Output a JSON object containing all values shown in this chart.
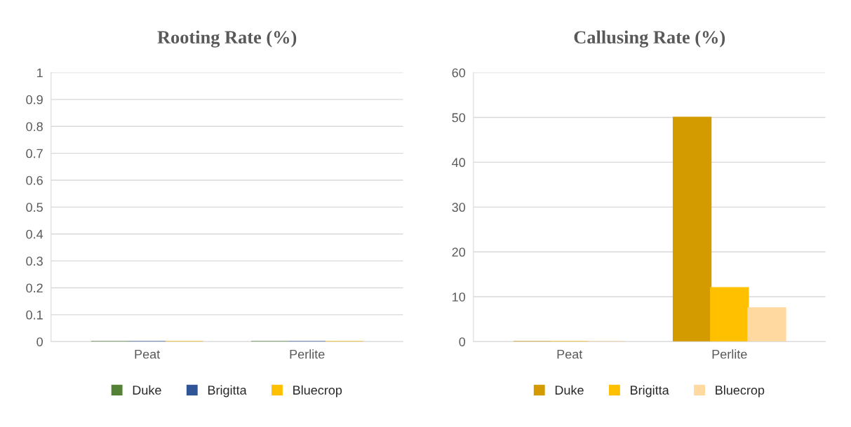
{
  "chart_data": [
    {
      "type": "bar",
      "title": "Rooting Rate (%)",
      "categories": [
        "Peat",
        "Perlite"
      ],
      "series": [
        {
          "name": "Duke",
          "color": "#538135",
          "values": [
            0,
            0
          ]
        },
        {
          "name": "Brigitta",
          "color": "#2f5597",
          "values": [
            0,
            0
          ]
        },
        {
          "name": "Bluecrop",
          "color": "#ffc000",
          "values": [
            0,
            0
          ]
        }
      ],
      "ylim": [
        0,
        1
      ],
      "yticks": [
        0,
        0.1,
        0.2,
        0.3,
        0.4,
        0.5,
        0.6,
        0.7,
        0.8,
        0.9,
        1
      ],
      "grid": "y",
      "legend": "bottom"
    },
    {
      "type": "bar",
      "title": "Callusing Rate (%)",
      "categories": [
        "Peat",
        "Perlite"
      ],
      "series": [
        {
          "name": "Duke",
          "color": "#d49b00",
          "values": [
            0,
            50
          ]
        },
        {
          "name": "Brigitta",
          "color": "#ffc000",
          "values": [
            0,
            12
          ]
        },
        {
          "name": "Bluecrop",
          "color": "#ffd9a0",
          "values": [
            0,
            7.5
          ]
        }
      ],
      "ylim": [
        0,
        60
      ],
      "yticks": [
        0,
        10,
        20,
        30,
        40,
        50,
        60
      ],
      "grid": "y",
      "legend": "bottom"
    }
  ]
}
